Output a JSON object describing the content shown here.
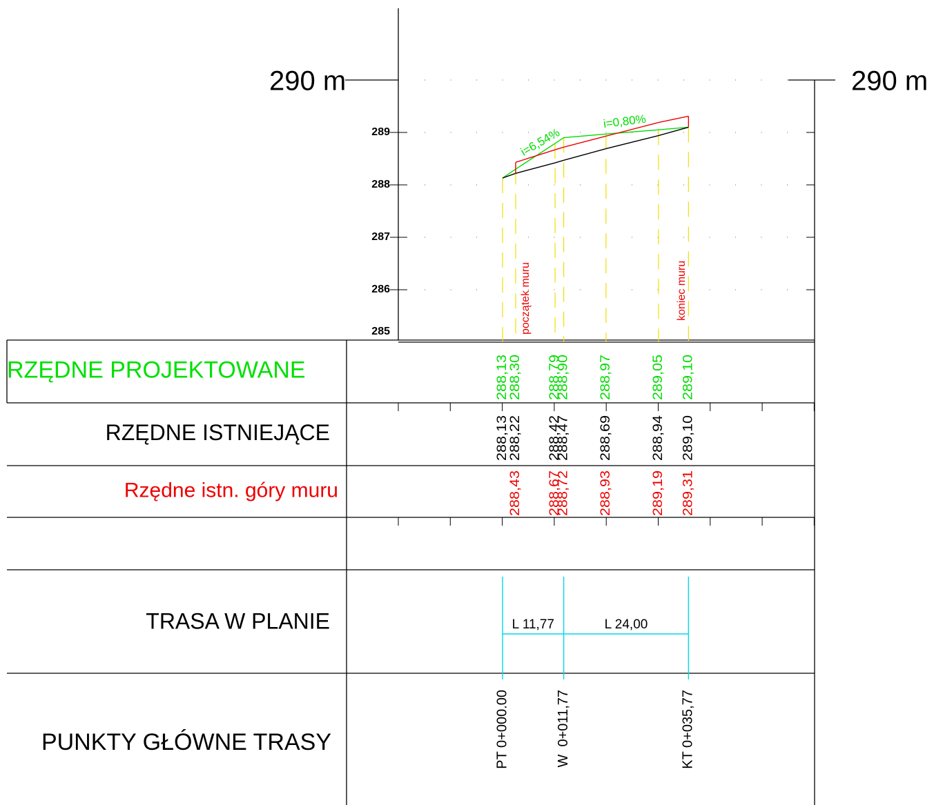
{
  "profile": {
    "top": {
      "value": 290,
      "label": "290 m"
    },
    "ylim": [
      285,
      290
    ],
    "yticks": [
      285,
      286,
      287,
      288,
      289
    ],
    "wall_start": "początek muru",
    "wall_end": "koniec muru",
    "slopes": [
      "i=6,54%",
      "i=0,80%"
    ],
    "points": [
      {
        "station": 0,
        "designed": {
          "value": 288.13,
          "label": "288,13"
        },
        "existing": {
          "value": 288.13,
          "label": "288,13"
        },
        "wall": null
      },
      {
        "station": 2.52,
        "designed": {
          "value": 288.3,
          "label": "288,30"
        },
        "existing": {
          "value": 288.22,
          "label": "288,22"
        },
        "wall": {
          "value": 288.43,
          "label": "288,43"
        }
      },
      {
        "station": 10.1,
        "designed": {
          "value": 288.79,
          "label": "288,79"
        },
        "existing": {
          "value": 288.42,
          "label": "288,42"
        },
        "wall": {
          "value": 288.67,
          "label": "288,67"
        }
      },
      {
        "station": 11.77,
        "designed": {
          "value": 288.9,
          "label": "288,90"
        },
        "existing": {
          "value": 288.47,
          "label": "288,47"
        },
        "wall": {
          "value": 288.72,
          "label": "288,72"
        }
      },
      {
        "station": 19.9,
        "designed": {
          "value": 288.97,
          "label": "288,97"
        },
        "existing": {
          "value": 288.69,
          "label": "288,69"
        },
        "wall": {
          "value": 288.93,
          "label": "288,93"
        }
      },
      {
        "station": 30.0,
        "designed": {
          "value": 289.05,
          "label": "289,05"
        },
        "existing": {
          "value": 288.94,
          "label": "288,94"
        },
        "wall": {
          "value": 289.19,
          "label": "289,19"
        }
      },
      {
        "station": 35.77,
        "designed": {
          "value": 289.1,
          "label": "289,10"
        },
        "existing": {
          "value": 289.1,
          "label": "289,10"
        },
        "wall": {
          "value": 289.31,
          "label": "289,31"
        }
      }
    ]
  },
  "rows": [
    "RZĘDNE PROJEKTOWANE",
    "RZĘDNE ISTNIEJĄCE",
    "Rzędne istn. góry muru",
    "",
    "TRASA W PLANIE",
    "PUNKTY GŁÓWNE TRASY"
  ],
  "main_points": [
    {
      "label": "PT 0+000.00",
      "station": 0
    },
    {
      "label": "W  0+011,77",
      "station": 11.77
    },
    {
      "label": "KT 0+035,77",
      "station": 35.77
    }
  ],
  "segments": [
    "L 11,77",
    "L 24,00"
  ]
}
